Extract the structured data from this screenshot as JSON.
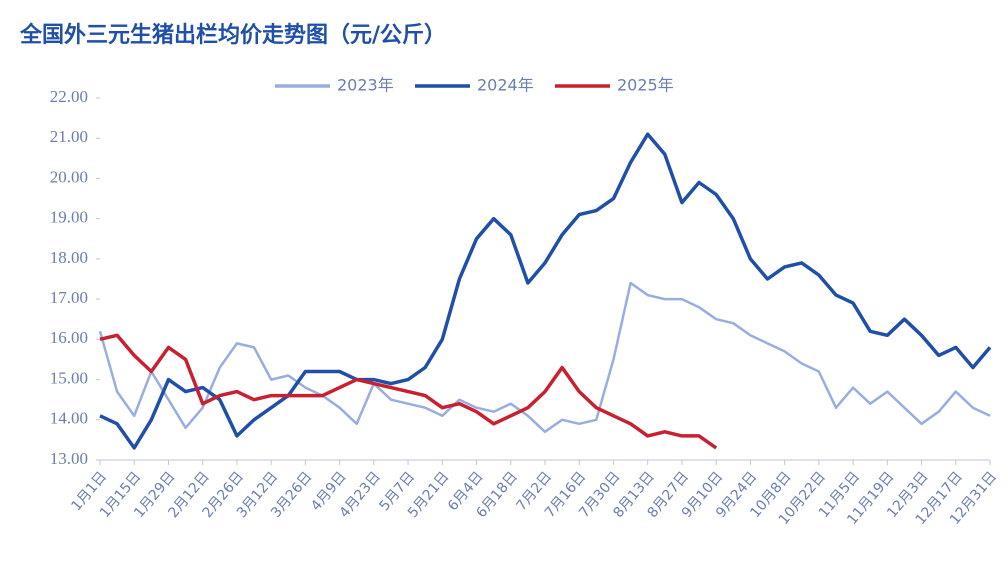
{
  "chart_data": {
    "type": "line",
    "title": "全国外三元生猪出栏均价走势图（元/公斤）",
    "categories": [
      "1月1日",
      null,
      "1月15日",
      null,
      "1月29日",
      null,
      "2月12日",
      null,
      "2月26日",
      null,
      "3月12日",
      null,
      "3月26日",
      null,
      "4月9日",
      null,
      "4月23日",
      null,
      "5月7日",
      null,
      "5月21日",
      null,
      "6月4日",
      null,
      "6月18日",
      null,
      "7月2日",
      null,
      "7月16日",
      null,
      "7月30日",
      null,
      "8月13日",
      null,
      "8月27日",
      null,
      "9月10日",
      null,
      "9月24日",
      null,
      "10月8日",
      null,
      "10月22日",
      null,
      "11月5日",
      null,
      "11月19日",
      null,
      "12月3日",
      null,
      "12月17日",
      null,
      "12月31日"
    ],
    "series": [
      {
        "name": "2023年",
        "color": "#9aade0",
        "values": [
          16.2,
          14.7,
          14.1,
          15.2,
          14.5,
          13.8,
          14.3,
          15.3,
          15.9,
          15.8,
          15.0,
          15.1,
          14.8,
          14.6,
          14.3,
          13.9,
          14.9,
          14.5,
          14.4,
          14.3,
          14.1,
          14.5,
          14.3,
          14.2,
          14.4,
          14.1,
          13.7,
          14.0,
          13.9,
          14.0,
          15.5,
          17.4,
          17.1,
          17.0,
          17.0,
          16.8,
          16.5,
          16.4,
          16.1,
          15.9,
          15.7,
          15.4,
          15.2,
          14.3,
          14.8,
          14.4,
          14.7,
          14.3,
          13.9,
          14.2,
          14.7,
          14.3,
          14.1
        ]
      },
      {
        "name": "2024年",
        "color": "#1f4fa8",
        "values": [
          14.1,
          13.9,
          13.3,
          14.0,
          15.0,
          14.7,
          14.8,
          14.5,
          13.6,
          14.0,
          14.3,
          14.6,
          15.2,
          15.2,
          15.2,
          15.0,
          15.0,
          14.9,
          15.0,
          15.3,
          16.0,
          17.5,
          18.5,
          19.0,
          18.6,
          17.4,
          17.9,
          18.6,
          19.1,
          19.2,
          19.5,
          20.4,
          21.1,
          20.6,
          19.4,
          19.9,
          19.6,
          19.0,
          18.0,
          17.5,
          17.8,
          17.9,
          17.6,
          17.1,
          16.9,
          16.2,
          16.1,
          16.5,
          16.1,
          15.6,
          15.8,
          15.3,
          15.8
        ]
      },
      {
        "name": "2025年",
        "color": "#c8202f",
        "values": [
          16.0,
          16.1,
          15.6,
          15.2,
          15.8,
          15.5,
          14.4,
          14.6,
          14.7,
          14.5,
          14.6,
          14.6,
          14.6,
          14.6,
          14.8,
          15.0,
          14.9,
          14.8,
          14.7,
          14.6,
          14.3,
          14.4,
          14.2,
          13.9,
          14.1,
          14.3,
          14.7,
          15.3,
          14.7,
          14.3,
          14.1,
          13.9,
          13.6,
          13.7,
          13.6,
          13.6,
          13.3,
          null,
          null,
          null,
          null,
          null,
          null,
          null,
          null,
          null,
          null,
          null,
          null,
          null,
          null,
          null,
          null
        ]
      }
    ],
    "ylim": [
      13,
      22
    ],
    "yticks": [
      {
        "value": 13,
        "label": "13.00"
      },
      {
        "value": 14,
        "label": "14.00"
      },
      {
        "value": 15,
        "label": "15.00"
      },
      {
        "value": 16,
        "label": "16.00"
      },
      {
        "value": 17,
        "label": "17.00"
      },
      {
        "value": 18,
        "label": "18.00"
      },
      {
        "value": 19,
        "label": "19.00"
      },
      {
        "value": 20,
        "label": "20.00"
      },
      {
        "value": 21,
        "label": "21.00"
      },
      {
        "value": 22,
        "label": "22.00"
      }
    ],
    "legend": "top"
  }
}
